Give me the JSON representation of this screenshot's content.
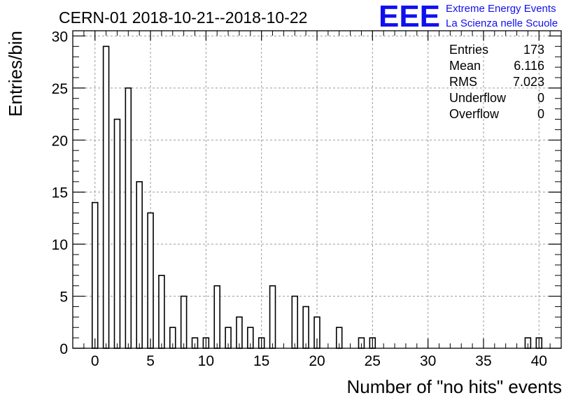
{
  "logo": {
    "mark": "EEE",
    "line1": "Extreme Energy Events",
    "line2": "La Scienza nelle Scuole",
    "color": "#1010ee"
  },
  "stats": [
    {
      "label": "Entries",
      "value": "173"
    },
    {
      "label": "Mean",
      "value": "6.116"
    },
    {
      "label": "RMS",
      "value": "7.023"
    },
    {
      "label": "Underflow",
      "value": "0"
    },
    {
      "label": "Overflow",
      "value": "0"
    }
  ],
  "chart_data": {
    "type": "bar",
    "title": "CERN-01 2018-10-21--2018-10-22",
    "xlabel": "Number of \"no hits\" events",
    "ylabel": "Entries/bin",
    "xlim": [
      -2,
      42
    ],
    "ylim": [
      0,
      30.5
    ],
    "xticks": [
      "0",
      "5",
      "10",
      "15",
      "20",
      "25",
      "30",
      "35",
      "40"
    ],
    "yticks": [
      "0",
      "5",
      "10",
      "15",
      "20",
      "25",
      "30"
    ],
    "grid": true,
    "bin_width": 0.5,
    "bins": [
      {
        "x": 0,
        "value": 14
      },
      {
        "x": 1,
        "value": 29
      },
      {
        "x": 2,
        "value": 22
      },
      {
        "x": 3,
        "value": 25
      },
      {
        "x": 4,
        "value": 16
      },
      {
        "x": 5,
        "value": 13
      },
      {
        "x": 6,
        "value": 7
      },
      {
        "x": 7,
        "value": 2
      },
      {
        "x": 8,
        "value": 5
      },
      {
        "x": 9,
        "value": 1
      },
      {
        "x": 10,
        "value": 1
      },
      {
        "x": 11,
        "value": 6
      },
      {
        "x": 12,
        "value": 2
      },
      {
        "x": 13,
        "value": 3
      },
      {
        "x": 14,
        "value": 2
      },
      {
        "x": 15,
        "value": 1
      },
      {
        "x": 16,
        "value": 6
      },
      {
        "x": 18,
        "value": 5
      },
      {
        "x": 19,
        "value": 4
      },
      {
        "x": 20,
        "value": 3
      },
      {
        "x": 22,
        "value": 2
      },
      {
        "x": 24,
        "value": 1
      },
      {
        "x": 25,
        "value": 1
      },
      {
        "x": 39,
        "value": 1
      },
      {
        "x": 40,
        "value": 1
      }
    ]
  }
}
